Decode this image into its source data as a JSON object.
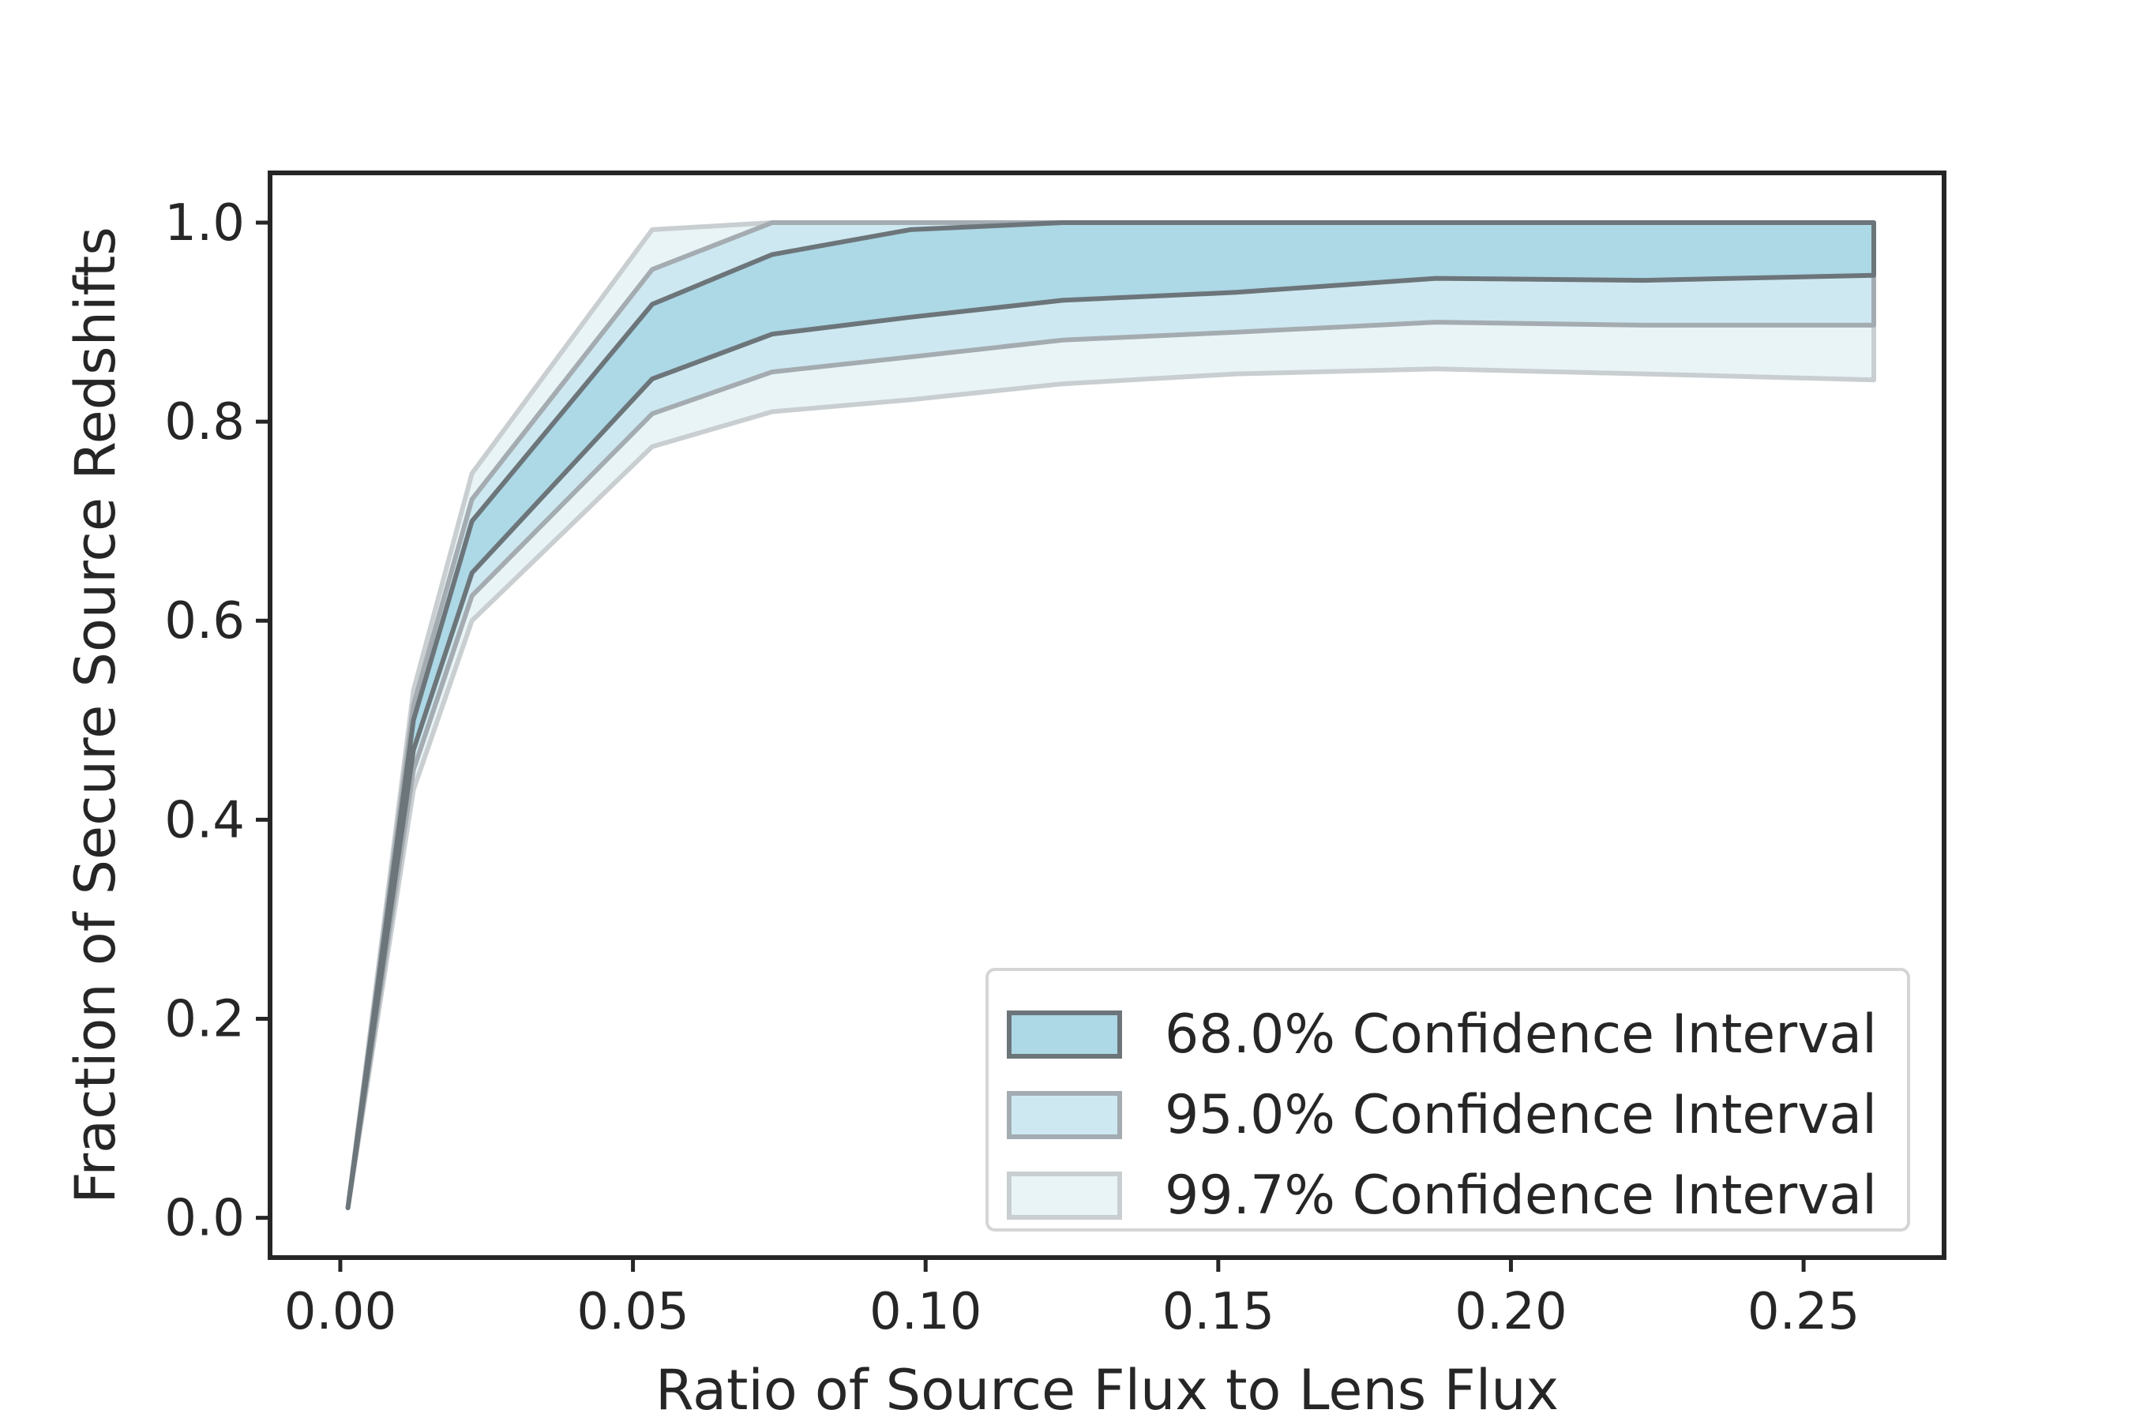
{
  "chart_data": {
    "type": "area",
    "title": "",
    "xlabel": "Ratio of Source Flux to Lens Flux",
    "ylabel": "Fraction of Secure Source Redshifts",
    "xlim": [
      -0.012,
      0.274
    ],
    "ylim": [
      -0.04,
      1.05
    ],
    "xticks": [
      0.0,
      0.05,
      0.1,
      0.15,
      0.2,
      0.25
    ],
    "xtick_labels": [
      "0.00",
      "0.05",
      "0.10",
      "0.15",
      "0.20",
      "0.25"
    ],
    "yticks": [
      0.0,
      0.2,
      0.4,
      0.6,
      0.8,
      1.0
    ],
    "ytick_labels": [
      "0.0",
      "0.2",
      "0.4",
      "0.6",
      "0.8",
      "1.0"
    ],
    "grid": false,
    "legend_position": "lower-right",
    "x": [
      0.0013,
      0.0125,
      0.0225,
      0.0533,
      0.0738,
      0.0974,
      0.1234,
      0.1531,
      0.1872,
      0.2226,
      0.262
    ],
    "series": [
      {
        "name": "99.7% Confidence Interval",
        "fill": "#e8f4f6",
        "edge": "#c9ced1",
        "lower": [
          0.01,
          0.43,
          0.6,
          0.775,
          0.81,
          0.822,
          0.838,
          0.848,
          0.853,
          0.848,
          0.842
        ],
        "upper": [
          0.01,
          0.53,
          0.748,
          0.993,
          1.0,
          1.0,
          1.0,
          1.0,
          1.0,
          1.0,
          1.0
        ]
      },
      {
        "name": "95.0% Confidence Interval",
        "fill": "#cde8f0",
        "edge": "#a4acb1",
        "lower": [
          0.01,
          0.45,
          0.625,
          0.808,
          0.85,
          0.865,
          0.882,
          0.89,
          0.9,
          0.897,
          0.897
        ],
        "upper": [
          0.01,
          0.515,
          0.722,
          0.953,
          1.0,
          1.0,
          1.0,
          1.0,
          1.0,
          1.0,
          1.0
        ]
      },
      {
        "name": "68.0% Confidence Interval",
        "fill": "#add8e6",
        "edge": "#6c757a",
        "lower": [
          0.01,
          0.47,
          0.648,
          0.843,
          0.888,
          0.905,
          0.922,
          0.93,
          0.944,
          0.942,
          0.947
        ],
        "upper": [
          0.01,
          0.5,
          0.7,
          0.918,
          0.968,
          0.993,
          1.0,
          1.0,
          1.0,
          1.0,
          1.0
        ]
      }
    ],
    "legend_order": [
      "68.0% Confidence Interval",
      "95.0% Confidence Interval",
      "99.7% Confidence Interval"
    ]
  }
}
